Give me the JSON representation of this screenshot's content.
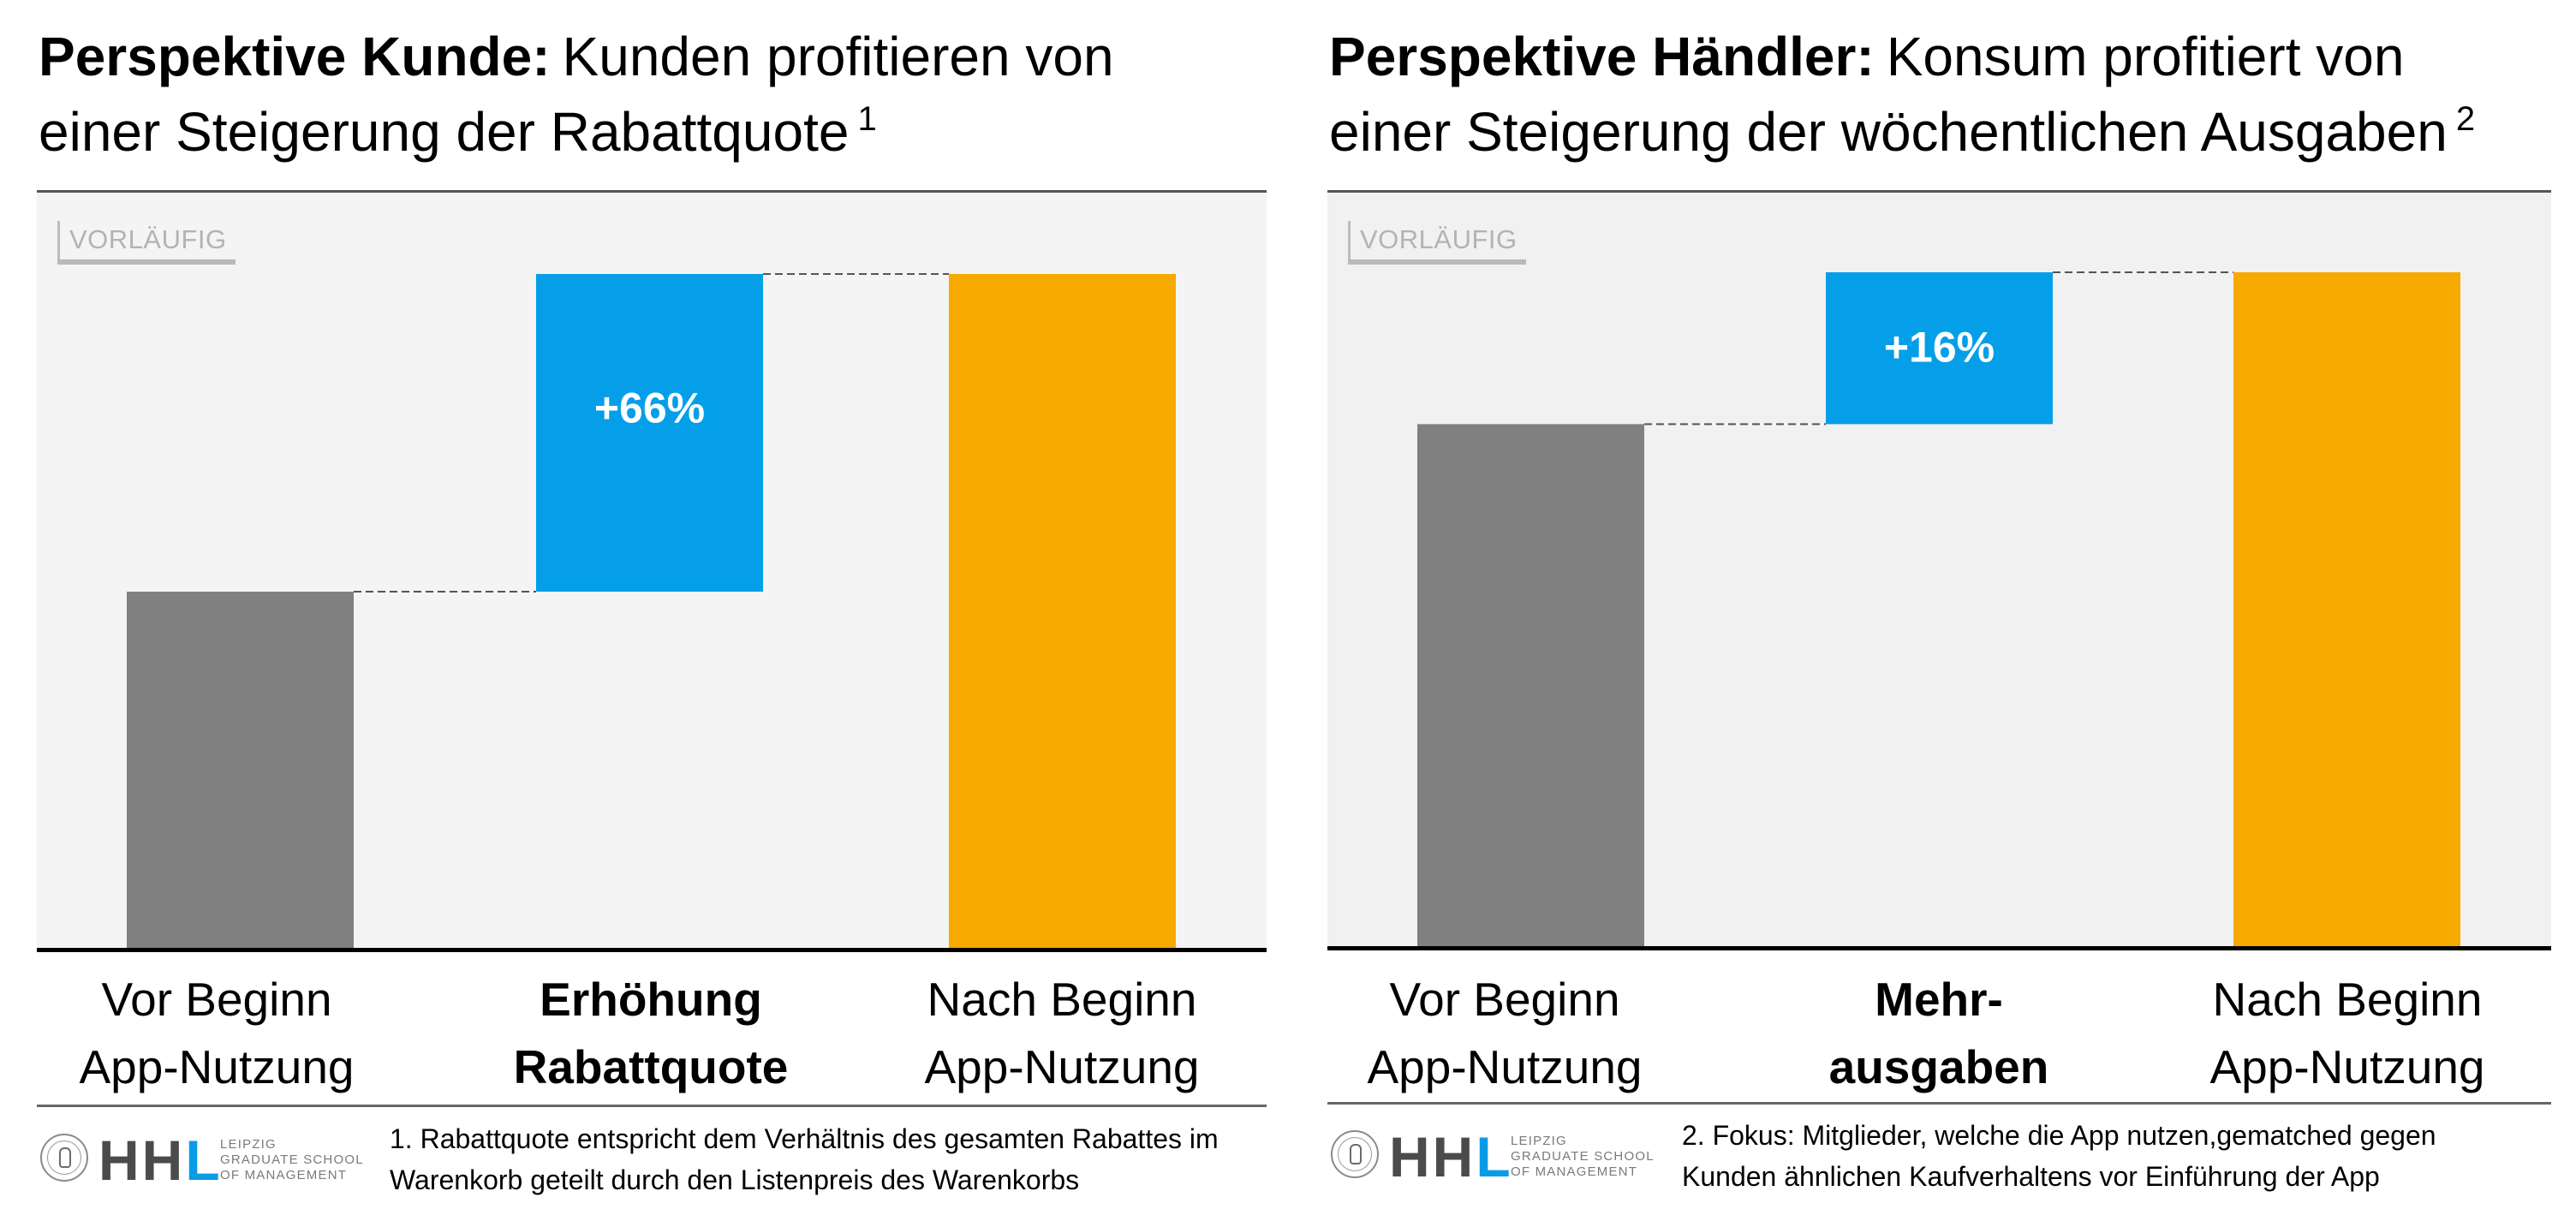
{
  "stamp_label": "VORLÄUFIG",
  "colors": {
    "base_bar": "#808080",
    "delta_bar": "#049fe8",
    "result_bar": "#f8a900",
    "connector": "#555555",
    "hhl_blue": "#0a9be6"
  },
  "panels": [
    {
      "title_bold": "Perspektive Kunde:",
      "title_line1": "Kunden profitieren von",
      "title_line2": "einer Steigerung der Rabattquote",
      "footnote_ref": "1",
      "categories": [
        {
          "line1": "Vor Beginn",
          "line2": "App-Nutzung",
          "bold": false
        },
        {
          "line1": "Erhöhung",
          "line2": "Rabattquote",
          "bold": true
        },
        {
          "line1": "Nach Beginn",
          "line2": "App-Nutzung",
          "bold": false
        }
      ],
      "footnote_line1": "1. Rabattquote entspricht dem Verhältnis des gesamten Rabattes im",
      "footnote_line2": "Warenkorb geteilt durch den Listenpreis des Warenkorbs",
      "logo": {
        "letters_dark": "HH",
        "letter_blue": "L",
        "sub1": "LEIPZIG",
        "sub2": "GRADUATE SCHOOL",
        "sub3": "OF MANAGEMENT"
      }
    },
    {
      "title_bold": "Perspektive Händler:",
      "title_line1": "Konsum profitiert von",
      "title_line2": "einer Steigerung der wöchentlichen Ausgaben",
      "footnote_ref": "2",
      "categories": [
        {
          "line1": "Vor Beginn",
          "line2": "App-Nutzung",
          "bold": false
        },
        {
          "line1": "Mehr-",
          "line2": "ausgaben",
          "bold": true
        },
        {
          "line1": "Nach Beginn",
          "line2": "App-Nutzung",
          "bold": false
        }
      ],
      "footnote_line1": "2. Fokus: Mitglieder, welche die App nutzen,gematched gegen",
      "footnote_line2": "Kunden ähnlichen Kaufverhaltens vor Einführung der App",
      "logo": {
        "letters_dark": "HH",
        "letter_blue": "L",
        "sub1": "LEIPZIG",
        "sub2": "GRADUATE SCHOOL",
        "sub3": "OF MANAGEMENT"
      }
    }
  ],
  "chart_data": [
    {
      "type": "bar",
      "subtype": "waterfall",
      "title": "Perspektive Kunde: Kunden profitieren von einer Steigerung der Rabattquote",
      "categories": [
        "Vor Beginn App-Nutzung",
        "Erhöhung Rabattquote",
        "Nach Beginn App-Nutzung"
      ],
      "unit": "index (Vor Beginn = 100)",
      "values": [
        100,
        66,
        166
      ],
      "roles": [
        "base",
        "delta",
        "total"
      ],
      "data_labels": [
        "",
        "+66%",
        ""
      ],
      "ylim": [
        26,
        166
      ],
      "axis_ticks": false,
      "grid": false,
      "legend": "none",
      "xlabel": "",
      "ylabel": ""
    },
    {
      "type": "bar",
      "subtype": "waterfall",
      "title": "Perspektive Händler: Konsum profitiert von einer Steigerung der wöchentlichen Ausgaben",
      "categories": [
        "Vor Beginn App-Nutzung",
        "Mehrausgaben",
        "Nach Beginn App-Nutzung"
      ],
      "unit": "index (Vor Beginn = 100)",
      "values": [
        100,
        16,
        116
      ],
      "roles": [
        "base",
        "delta",
        "total"
      ],
      "data_labels": [
        "",
        "+16%",
        ""
      ],
      "ylim": [
        45,
        116
      ],
      "axis_ticks": false,
      "grid": false,
      "legend": "none",
      "xlabel": "",
      "ylabel": ""
    }
  ]
}
